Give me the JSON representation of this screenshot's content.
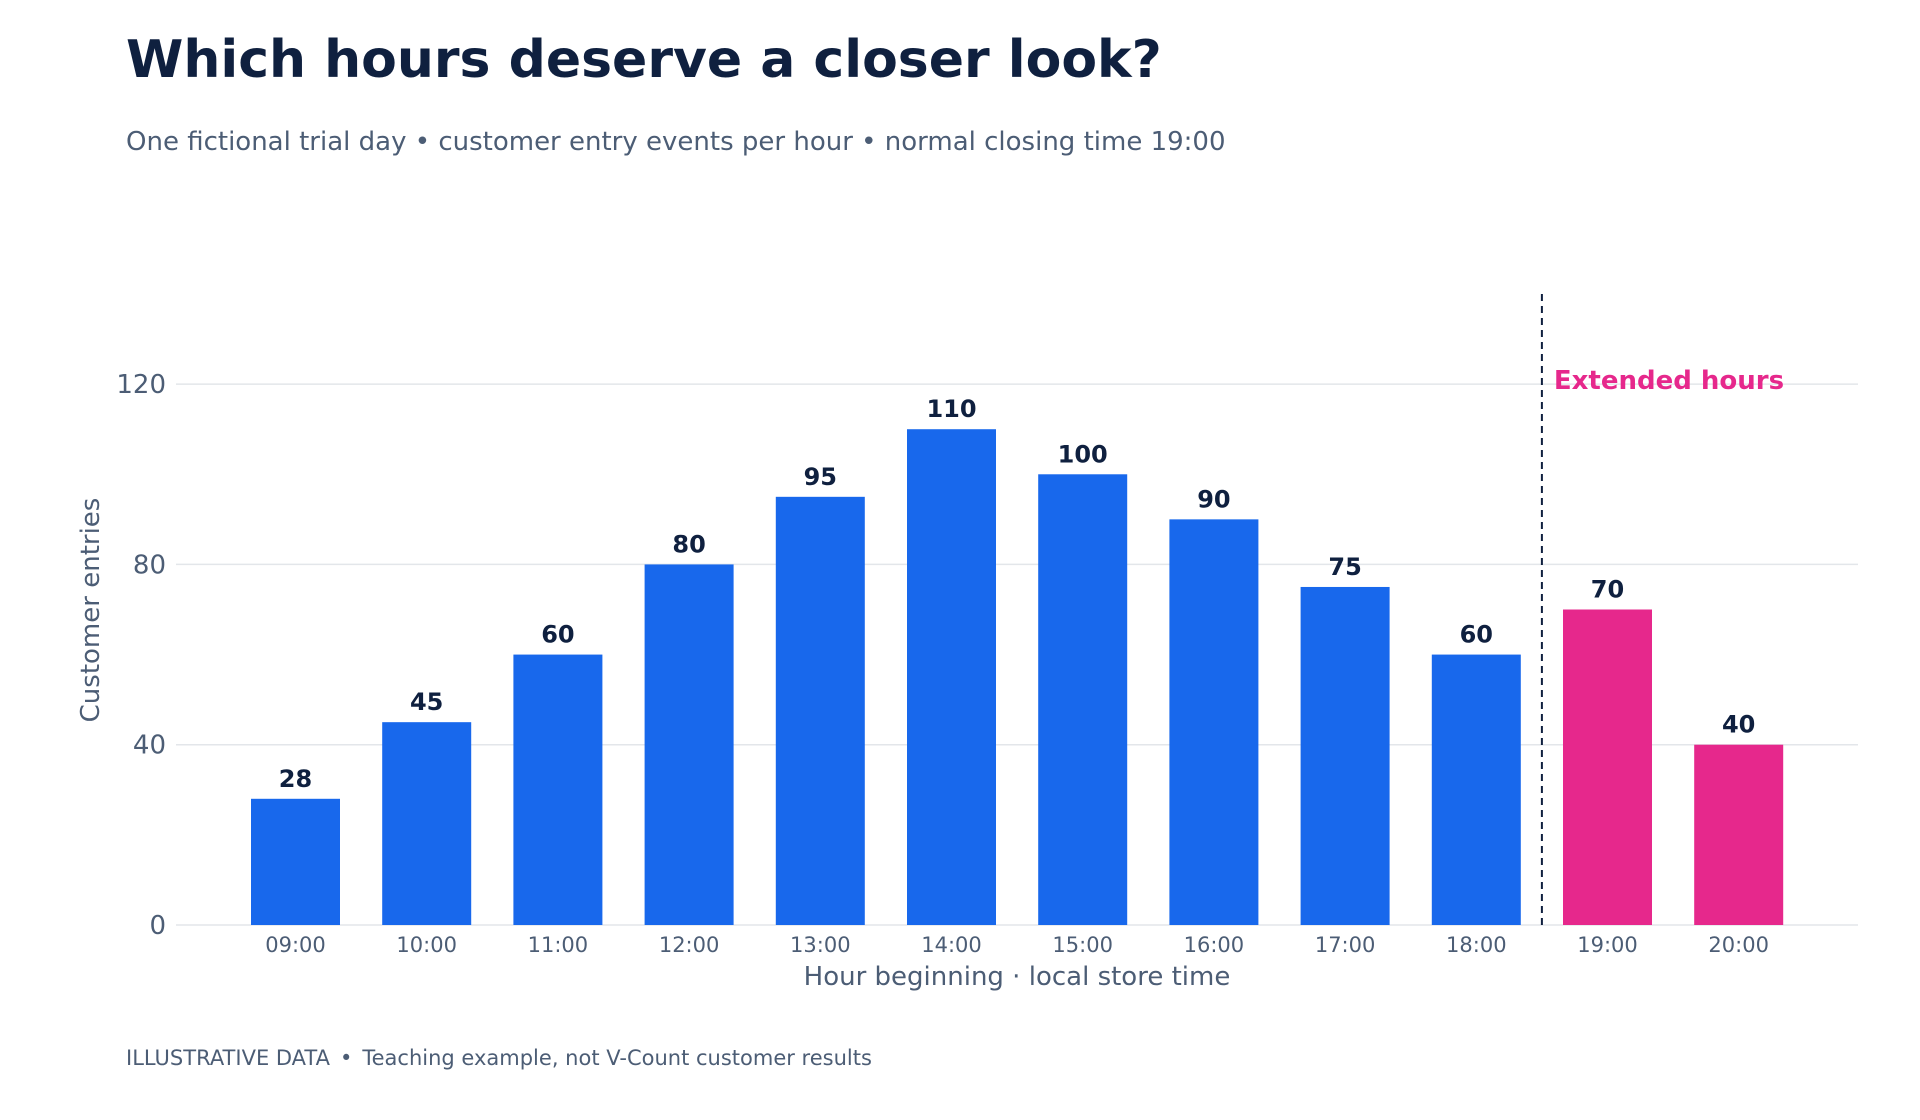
{
  "title": "Which hours deserve a closer look?",
  "subtitle": "One fictional trial day • customer entry events per hour • normal closing time 19:00",
  "footer": {
    "tag": "ILLUSTRATIVE DATA",
    "separator": "•",
    "note": "Teaching example, not V-Count customer results"
  },
  "chart_data": {
    "type": "bar",
    "title": "Which hours deserve a closer look?",
    "subtitle": "One fictional trial day • customer entry events per hour • normal closing time 19:00",
    "xlabel": "Hour beginning · local store time",
    "ylabel": "Customer entries",
    "categories": [
      "09:00",
      "10:00",
      "11:00",
      "12:00",
      "13:00",
      "14:00",
      "15:00",
      "16:00",
      "17:00",
      "18:00",
      "19:00",
      "20:00"
    ],
    "values": [
      28,
      45,
      60,
      80,
      95,
      110,
      100,
      90,
      75,
      60,
      70,
      40
    ],
    "extended": [
      false,
      false,
      false,
      false,
      false,
      false,
      false,
      false,
      false,
      false,
      true,
      true
    ],
    "ylim": [
      0,
      140
    ],
    "yticks": [
      0,
      40,
      80,
      120
    ],
    "grid": true,
    "data_labels": true,
    "colors": {
      "regular": "#1868ec",
      "extended": "#e6288c",
      "divider": "#0f203f",
      "grid": "#e3e6ea"
    },
    "annotation": {
      "text": "Extended hours",
      "position": "between 18:00 and 19:00",
      "color": "#e6288c"
    }
  }
}
